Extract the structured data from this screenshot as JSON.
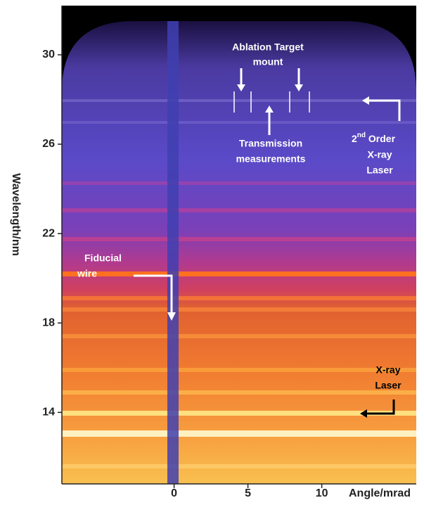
{
  "chart_data": {
    "type": "spectrogram",
    "xlabel": "Angle/mrad",
    "ylabel": "Wavelength/nm",
    "xlim": [
      -7.6,
      16.4
    ],
    "xticks": [
      0,
      5,
      10
    ],
    "ylim": [
      10.8,
      32.2
    ],
    "yticks": [
      14,
      18,
      22,
      26,
      30
    ],
    "annotations": {
      "ablation": [
        "Ablation Target",
        "mount"
      ],
      "transmission": [
        "Transmission",
        "measurements"
      ],
      "second_order": [
        "2",
        "nd",
        " Order",
        "X-ray",
        "Laser"
      ],
      "fiducial": [
        "Fiducial",
        "wire"
      ],
      "xray_laser": [
        "X-ray",
        "Laser"
      ]
    }
  }
}
